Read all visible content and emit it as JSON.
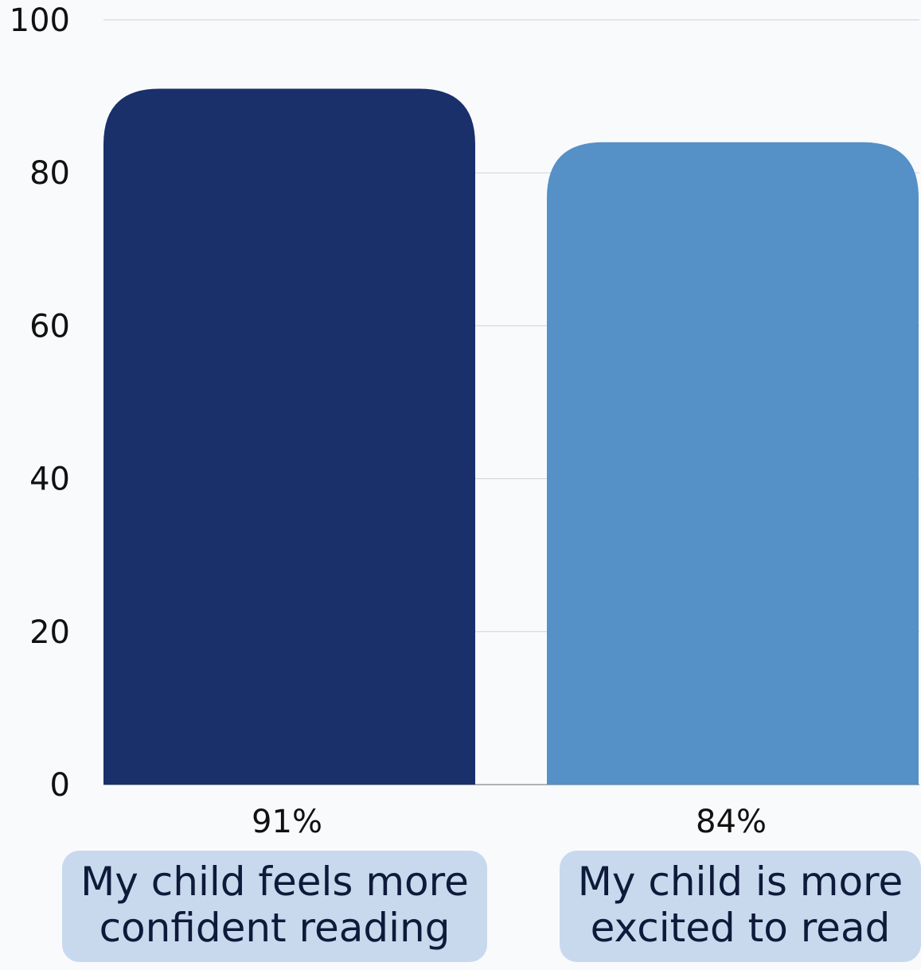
{
  "chart_data": {
    "type": "bar",
    "categories": [
      "My child feels more confident reading",
      "My child is more excited to read"
    ],
    "category_lines": [
      [
        "My child feels more",
        "confident reading"
      ],
      [
        "My child is more",
        "excited to read"
      ]
    ],
    "values": [
      91,
      84
    ],
    "value_labels": [
      "91%",
      "84%"
    ],
    "colors": [
      "#19306b",
      "#5590c6"
    ],
    "ylim": [
      0,
      100
    ],
    "yticks": [
      0,
      20,
      40,
      60,
      80,
      100
    ],
    "title": "",
    "xlabel": "",
    "ylabel": "",
    "grid": true
  }
}
